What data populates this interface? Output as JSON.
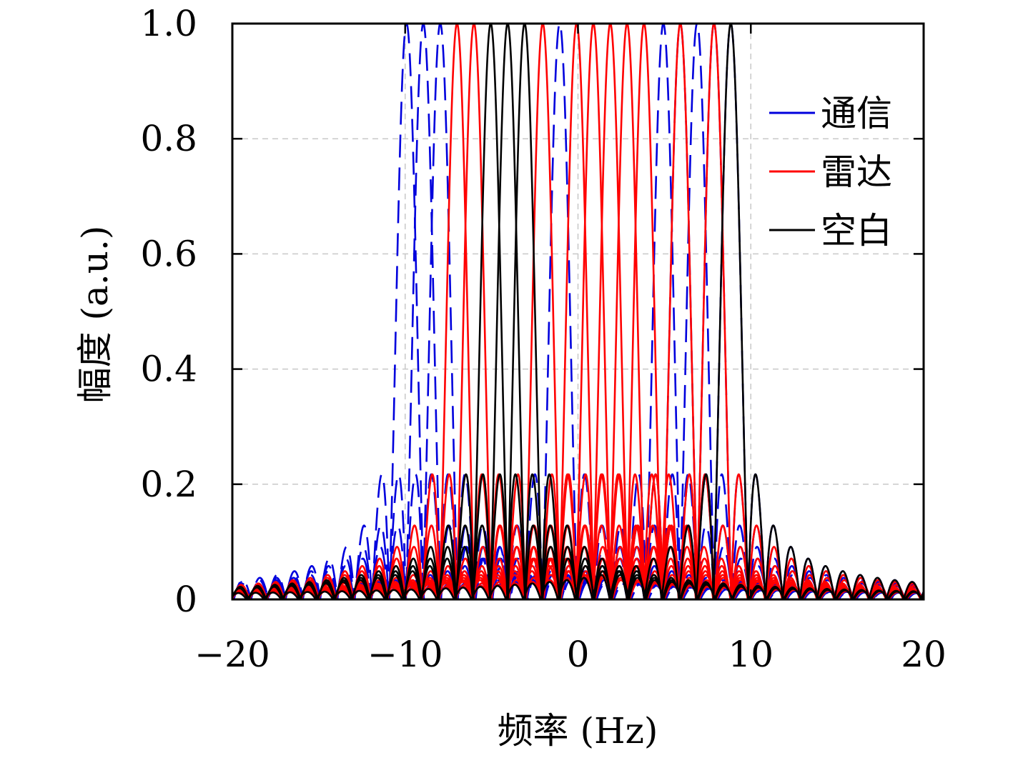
{
  "chart_data": {
    "type": "line",
    "xlabel": "频率 (Hz)",
    "ylabel": "幅度 (a.u.)",
    "xlim": [
      -20,
      20
    ],
    "ylim": [
      0,
      1.0
    ],
    "x_ticks": [
      -20,
      -10,
      0,
      10,
      20
    ],
    "x_tick_labels": [
      "−20",
      "−10",
      "0",
      "10",
      "20"
    ],
    "y_ticks": [
      0,
      0.2,
      0.4,
      0.6,
      0.8,
      1.0
    ],
    "y_tick_labels": [
      "0",
      "0.2",
      "0.4",
      "0.6",
      "0.8",
      "1.0"
    ],
    "grid": true,
    "legend_position": "top-right",
    "curve": "abs-sinc",
    "series": [
      {
        "name": "通信",
        "color": "#0000dd",
        "dashed": true,
        "centers": [
          -9.92,
          -8.95,
          -7.97,
          -1.06,
          4.94,
          5.92,
          6.89,
          7.87,
          8.84
        ]
      },
      {
        "name": "雷达",
        "color": "#ff0000",
        "dashed": false,
        "centers": [
          -7.0,
          -6.02,
          -2.04,
          -0.08,
          0.89,
          1.87,
          2.84,
          3.82,
          5.92,
          7.87
        ]
      },
      {
        "name": "空白",
        "color": "#000000",
        "dashed": false,
        "centers": [
          -5.05,
          -4.07,
          -3.09,
          8.84
        ]
      }
    ]
  }
}
